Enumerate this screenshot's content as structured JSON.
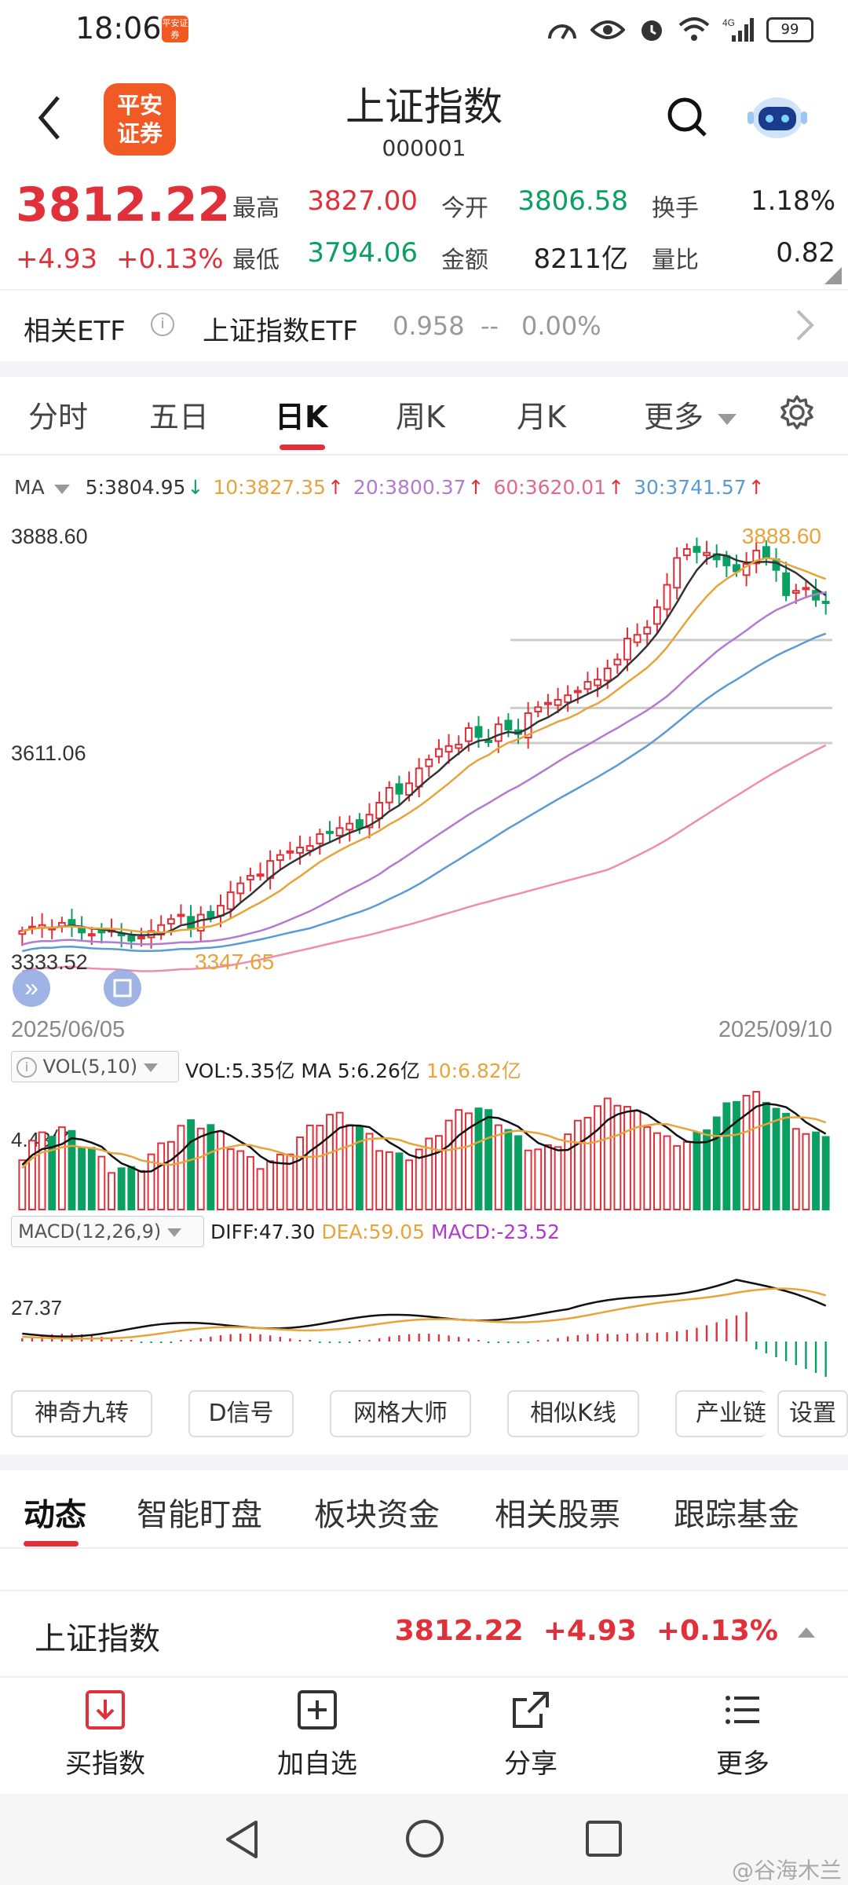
{
  "status_bar": {
    "time": "18:06",
    "app_badge": "平安证券",
    "network": "4G",
    "battery": "99"
  },
  "header": {
    "title": "上证指数",
    "code": "000001",
    "logo_text": "平安证券"
  },
  "quote": {
    "price": "3812.22",
    "change": "+4.93",
    "change_pct": "+0.13%",
    "stats": [
      {
        "label": "最高",
        "value": "3827.00",
        "tone": "red"
      },
      {
        "label": "今开",
        "value": "3806.58",
        "tone": "green"
      },
      {
        "label": "换手",
        "value": "1.18%",
        "tone": "dark"
      },
      {
        "label": "最低",
        "value": "3794.06",
        "tone": "green"
      },
      {
        "label": "金额",
        "value": "8211亿",
        "tone": "dark"
      },
      {
        "label": "量比",
        "value": "0.82",
        "tone": "dark"
      }
    ]
  },
  "etf": {
    "label": "相关ETF",
    "name": "上证指数ETF",
    "price": "0.958",
    "dash": "--",
    "pct": "0.00%"
  },
  "chart_tabs": [
    "分时",
    "五日",
    "日K",
    "周K",
    "月K",
    "更多"
  ],
  "active_tab": "日K",
  "ma_legend": {
    "prefix": "MA",
    "ma5": "5:3804.95",
    "ma10": "10:3827.35",
    "ma20": "20:3800.37",
    "ma60": "60:3620.01",
    "ma30": "30:3741.57"
  },
  "colors": {
    "up": "#e0303a",
    "down": "#0aa062",
    "ma5": "#333333",
    "ma10": "#e8a33a",
    "ma20": "#b37ad0",
    "ma30": "#5b9bd5",
    "ma60": "#f08cae"
  },
  "chart_data": {
    "type": "candlestick",
    "y_labels": {
      "top": "3888.60",
      "mid": "3611.06",
      "bottom": "3333.52"
    },
    "annotations": {
      "high": "3888.60",
      "low": "3347.65"
    },
    "date_start": "2025/06/05",
    "date_end": "2025/09/10",
    "ylim": [
      3300,
      3900
    ],
    "closes": [
      3368,
      3374,
      3376,
      3372,
      3379,
      3376,
      3366,
      3364,
      3366,
      3369,
      3362,
      3355,
      3360,
      3368,
      3376,
      3384,
      3390,
      3372,
      3390,
      3386,
      3402,
      3420,
      3432,
      3442,
      3444,
      3462,
      3470,
      3475,
      3480,
      3482,
      3498,
      3500,
      3506,
      3512,
      3506,
      3524,
      3540,
      3560,
      3552,
      3566,
      3586,
      3598,
      3612,
      3616,
      3618,
      3640,
      3628,
      3623,
      3645,
      3638,
      3632,
      3660,
      3668,
      3674,
      3678,
      3684,
      3690,
      3702,
      3705,
      3720,
      3732,
      3760,
      3765,
      3775,
      3802,
      3832,
      3868,
      3880,
      3876,
      3875,
      3866,
      3858,
      3850,
      3860,
      3878,
      3868,
      3852,
      3818,
      3824,
      3828,
      3812,
      3808
    ],
    "volume": {
      "legend": "VOL(5,10)",
      "vol": "VOL:5.35亿",
      "ma5": "MA 5:6.26亿",
      "ma10": "10:6.82亿",
      "y_label": "4.43亿"
    },
    "macd": {
      "legend": "MACD(12,26,9)",
      "diff": "DIFF:47.30",
      "dea": "DEA:59.05",
      "macd": "MACD:-23.52",
      "y_label": "27.37"
    }
  },
  "tools": [
    "神奇九转",
    "D信号",
    "网格大师",
    "相似K线",
    "产业链",
    "设置"
  ],
  "sections": [
    "动态",
    "智能盯盘",
    "板块资金",
    "相关股票",
    "跟踪基金"
  ],
  "bottom_quote": {
    "name": "上证指数",
    "price": "3812.22",
    "change": "+4.93",
    "pct": "+0.13%"
  },
  "actions": [
    "买指数",
    "加自选",
    "分享",
    "更多"
  ],
  "watermark": "@谷海木兰"
}
